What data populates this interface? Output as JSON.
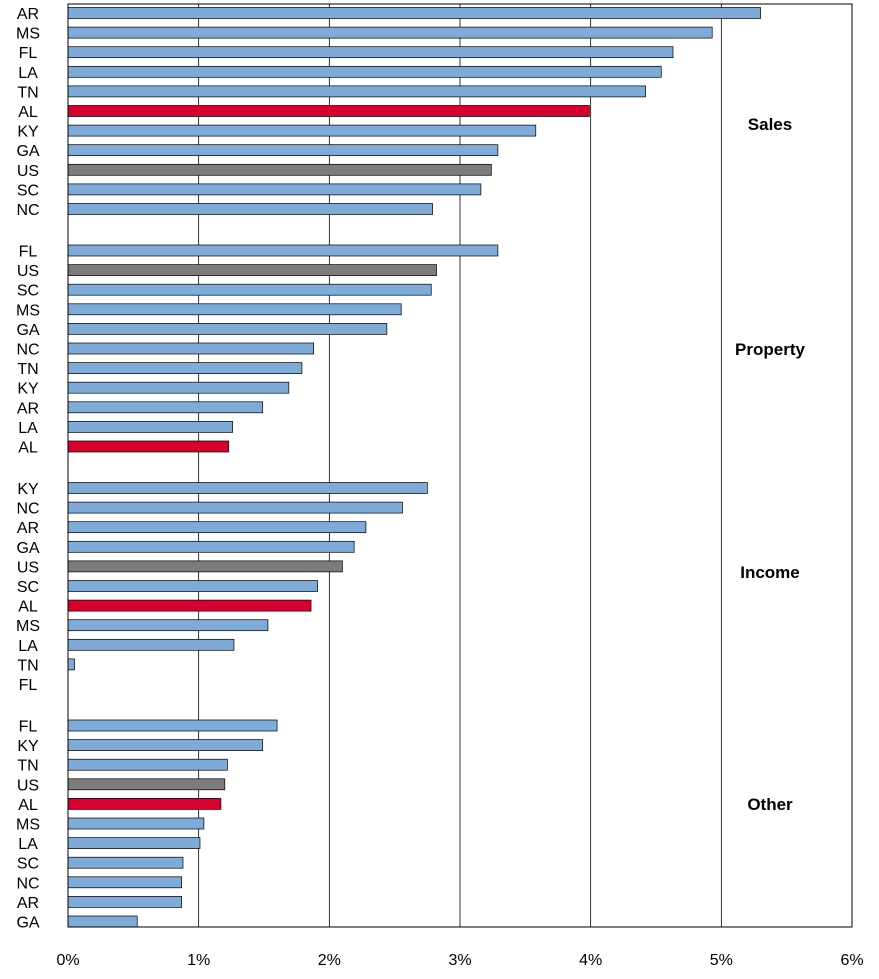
{
  "colors": {
    "state": "#7eabd8",
    "alabama": "#d8002e",
    "us": "#7c7c7c",
    "outline": "#000000",
    "grid": "#000000"
  },
  "chart_data": {
    "type": "bar",
    "orientation": "horizontal",
    "xlim": [
      0,
      6
    ],
    "x_ticks": [
      "0%",
      "1%",
      "2%",
      "3%",
      "4%",
      "5%",
      "6%"
    ],
    "grid": "vertical",
    "groups": [
      {
        "name": "Sales",
        "items": [
          {
            "label": "AR",
            "value": 5.3
          },
          {
            "label": "MS",
            "value": 4.93
          },
          {
            "label": "FL",
            "value": 4.63
          },
          {
            "label": "LA",
            "value": 4.54
          },
          {
            "label": "TN",
            "value": 4.42
          },
          {
            "label": "AL",
            "value": 3.99
          },
          {
            "label": "KY",
            "value": 3.58
          },
          {
            "label": "GA",
            "value": 3.29
          },
          {
            "label": "US",
            "value": 3.24
          },
          {
            "label": "SC",
            "value": 3.16
          },
          {
            "label": "NC",
            "value": 2.79
          }
        ]
      },
      {
        "name": "Property",
        "items": [
          {
            "label": "FL",
            "value": 3.29
          },
          {
            "label": "US",
            "value": 2.82
          },
          {
            "label": "SC",
            "value": 2.78
          },
          {
            "label": "MS",
            "value": 2.55
          },
          {
            "label": "GA",
            "value": 2.44
          },
          {
            "label": "NC",
            "value": 1.88
          },
          {
            "label": "TN",
            "value": 1.79
          },
          {
            "label": "KY",
            "value": 1.69
          },
          {
            "label": "AR",
            "value": 1.49
          },
          {
            "label": "LA",
            "value": 1.26
          },
          {
            "label": "AL",
            "value": 1.23
          }
        ]
      },
      {
        "name": "Income",
        "items": [
          {
            "label": "KY",
            "value": 2.75
          },
          {
            "label": "NC",
            "value": 2.56
          },
          {
            "label": "AR",
            "value": 2.28
          },
          {
            "label": "GA",
            "value": 2.19
          },
          {
            "label": "US",
            "value": 2.1
          },
          {
            "label": "SC",
            "value": 1.91
          },
          {
            "label": "AL",
            "value": 1.86
          },
          {
            "label": "MS",
            "value": 1.53
          },
          {
            "label": "LA",
            "value": 1.27
          },
          {
            "label": "TN",
            "value": 0.05
          },
          {
            "label": "FL",
            "value": 0
          }
        ]
      },
      {
        "name": "Other",
        "items": [
          {
            "label": "FL",
            "value": 1.6
          },
          {
            "label": "KY",
            "value": 1.49
          },
          {
            "label": "TN",
            "value": 1.22
          },
          {
            "label": "US",
            "value": 1.2
          },
          {
            "label": "AL",
            "value": 1.17
          },
          {
            "label": "MS",
            "value": 1.04
          },
          {
            "label": "LA",
            "value": 1.01
          },
          {
            "label": "SC",
            "value": 0.88
          },
          {
            "label": "NC",
            "value": 0.87
          },
          {
            "label": "AR",
            "value": 0.87
          },
          {
            "label": "GA",
            "value": 0.53
          }
        ]
      }
    ]
  }
}
